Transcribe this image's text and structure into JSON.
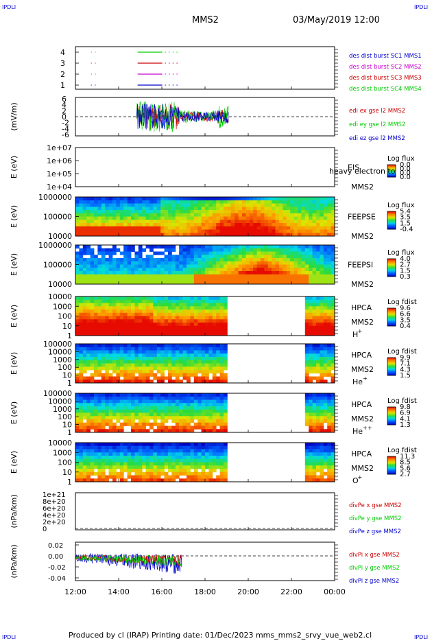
{
  "header": {
    "corner_tl": "IPDLI",
    "corner_tr": "IPDLI",
    "title": "MMS2",
    "datetime": "03/May/2019 12:00"
  },
  "footer": {
    "text": "Produced by cl (IRAP)   Printing date: 01/Dec/2023   mms_mms2_srvy_vue_web2.cl",
    "corner_bl": "IPDLI",
    "corner_br": "IPDLI"
  },
  "colors": {
    "blue": "#0000cc",
    "red": "#cc0000",
    "green": "#00cc00",
    "magenta": "#cc00cc"
  },
  "chart_data": {
    "type": "line",
    "x_axis": {
      "ticks": [
        "12:00",
        "14:00",
        "16:00",
        "18:00",
        "20:00",
        "22:00",
        "00:00"
      ],
      "range": [
        "12:00",
        "00:00"
      ]
    },
    "panels": [
      {
        "id": "burst",
        "type": "line",
        "yticks": [
          "4",
          "3",
          "2",
          "1"
        ],
        "series": [
          {
            "name": "des dist burst SC1 MMS1",
            "color": "#0000cc",
            "level": 1
          },
          {
            "name": "des dist burst SC2 MMS2",
            "color": "#cc00cc",
            "level": 2
          },
          {
            "name": "des dist burst SC3 MMS3",
            "color": "#cc0000",
            "level": 3
          },
          {
            "name": "des dist burst SC4 MMS4",
            "color": "#00cc00",
            "level": 4
          }
        ]
      },
      {
        "id": "edi",
        "type": "line",
        "ylabel": "(mV/m)",
        "yticks": [
          "6",
          "4",
          "2",
          "0",
          "-2",
          "-4",
          "-6"
        ],
        "ylim": [
          -6,
          6
        ],
        "series": [
          {
            "name": "edi ex gse l2 MMS2",
            "color": "#cc0000"
          },
          {
            "name": "edi ey gse l2 MMS2",
            "color": "#00cc00"
          },
          {
            "name": "edi ez gse l2 MMS2",
            "color": "#0000cc"
          }
        ]
      },
      {
        "id": "eis",
        "type": "heatmap",
        "ylabel": "E (eV)",
        "yticks": [
          "1e+07",
          "1e+06",
          "1e+05",
          "1e+04"
        ],
        "labels": [
          "EIS",
          "MMS2"
        ],
        "overlay_text": "heavy electron to",
        "colorbar": {
          "title": "Log flux",
          "ticks": [
            "0.0",
            "0.0",
            "0.0",
            "0.0"
          ]
        }
      },
      {
        "id": "feepse",
        "type": "heatmap",
        "ylabel": "E (eV)",
        "yticks": [
          "1000000",
          "100000",
          "10000"
        ],
        "labels": [
          "FEEPSE",
          "MMS2"
        ],
        "colorbar": {
          "title": "Log flux",
          "ticks": [
            "5.4",
            "3.5",
            "1.5",
            "-0.4"
          ]
        }
      },
      {
        "id": "feepsi",
        "type": "heatmap",
        "ylabel": "E (eV)",
        "yticks": [
          "1000000",
          "100000",
          "10000"
        ],
        "labels": [
          "FEEPSI",
          "MMS2"
        ],
        "colorbar": {
          "title": "Log flux",
          "ticks": [
            "4.0",
            "2.7",
            "1.5",
            "0.3"
          ]
        }
      },
      {
        "id": "hpca_h",
        "type": "heatmap",
        "ylabel": "E (eV)",
        "yticks": [
          "10000",
          "1000",
          "100",
          "10",
          "1"
        ],
        "labels": [
          "HPCA",
          "MMS2"
        ],
        "species": "H",
        "species_sup": "+",
        "colorbar": {
          "title": "Log fdist",
          "ticks": [
            "9.6",
            "6.6",
            "3.5",
            "0.4"
          ]
        }
      },
      {
        "id": "hpca_he",
        "type": "heatmap",
        "ylabel": "E (eV)",
        "yticks": [
          "100000",
          "10000",
          "1000",
          "100",
          "10",
          "1"
        ],
        "labels": [
          "HPCA",
          "MMS2"
        ],
        "species": "He",
        "species_sup": "+",
        "colorbar": {
          "title": "Log fdist",
          "ticks": [
            "9.9",
            "7.1",
            "4.3",
            "1.5"
          ]
        }
      },
      {
        "id": "hpca_hepp",
        "type": "heatmap",
        "ylabel": "E (eV)",
        "yticks": [
          "100000",
          "10000",
          "1000",
          "100",
          "10",
          "1"
        ],
        "labels": [
          "HPCA",
          "MMS2"
        ],
        "species": "He",
        "species_sup": "++",
        "colorbar": {
          "title": "Log fdist",
          "ticks": [
            "9.8",
            "6.9",
            "4.1",
            "1.3"
          ]
        }
      },
      {
        "id": "hpca_o",
        "type": "heatmap",
        "ylabel": "E (eV)",
        "yticks": [
          "10000",
          "1000",
          "100",
          "10",
          "1"
        ],
        "labels": [
          "HPCA",
          "MMS2"
        ],
        "species": "O",
        "species_sup": "+",
        "colorbar": {
          "title": "Log fdist",
          "ticks": [
            "11.3",
            "8.5",
            "5.6",
            "2.7"
          ]
        }
      },
      {
        "id": "divpe",
        "type": "line",
        "ylabel": "(nPa/km)",
        "yticks": [
          "1e+21",
          "8e+20",
          "6e+20",
          "4e+20",
          "2e+20",
          "0"
        ],
        "series": [
          {
            "name": "divPe x gse MMS2",
            "color": "#cc0000"
          },
          {
            "name": "divPe y gse MMS2",
            "color": "#00cc00"
          },
          {
            "name": "divPe z gse MMS2",
            "color": "#0000cc"
          }
        ]
      },
      {
        "id": "divpi",
        "type": "line",
        "ylabel": "(nPa/km)",
        "yticks": [
          "0.02",
          "0.00",
          "-0.02",
          "-0.04"
        ],
        "ylim": [
          -0.045,
          0.025
        ],
        "series": [
          {
            "name": "divPi x gse MMS2",
            "color": "#cc0000"
          },
          {
            "name": "divPi y gse MMS2",
            "color": "#00cc00"
          },
          {
            "name": "divPi z gse MMS2",
            "color": "#0000cc"
          }
        ]
      }
    ]
  }
}
